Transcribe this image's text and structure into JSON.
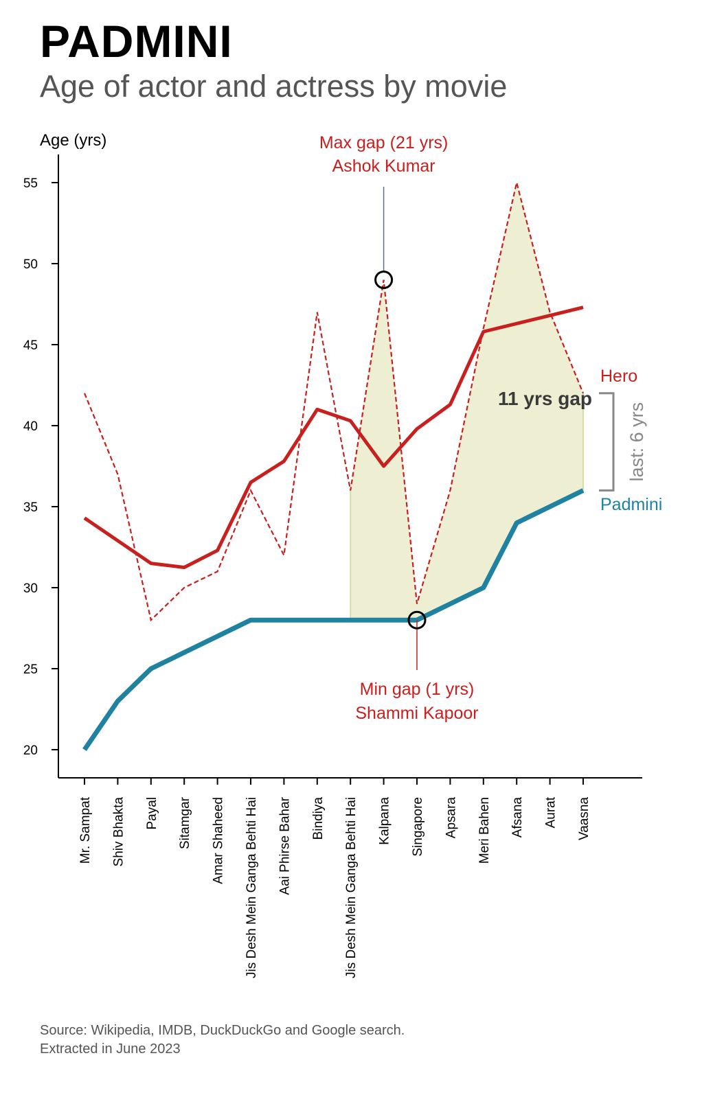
{
  "title": "PADMINI",
  "subtitle": "Age of actor and actress by movie",
  "source": {
    "line1": "Source: Wikipedia, IMDB, DuckDuckGo and Google search.",
    "line2": "Extracted in June 2023"
  },
  "chart_data": {
    "type": "line",
    "ylabel": "Age (yrs)",
    "ylim": [
      18.3,
      56.8
    ],
    "yticks": [
      20,
      25,
      30,
      35,
      40,
      45,
      50,
      55
    ],
    "categories": [
      "Mr. Sampat",
      "Shiv Bhakta",
      "Payal",
      "Sitamgar",
      "Amar Shaheed",
      "Jis Desh Mein Ganga Behti Hai",
      "Aai Phirse Bahar",
      "Bindiya",
      "Jis Desh Mein Ganga Behti Hai",
      "Kalpana",
      "Singapore",
      "Apsara",
      "Meri Bahen",
      "Afsana",
      "Aurat",
      "Vaasna"
    ],
    "series": [
      {
        "name": "Hero",
        "role": "hero-age",
        "color": "#c8201e",
        "values": [
          42,
          37,
          28,
          30,
          31,
          36,
          32,
          47,
          36,
          49,
          29,
          36,
          46,
          55,
          47,
          42
        ]
      },
      {
        "name": "Hero",
        "role": "hero-trend",
        "color": "#c8201e",
        "values": [
          34.3,
          32.9,
          31.5,
          31.25,
          32.3,
          36.5,
          37.8,
          41.0,
          40.3,
          37.5,
          39.8,
          41.3,
          45.8,
          46.3,
          46.8,
          47.3
        ]
      },
      {
        "name": "Padmini",
        "role": "actress-age",
        "color": "#1f82a0",
        "values": [
          20,
          23,
          25,
          26,
          27,
          28,
          28,
          28,
          28,
          28,
          28,
          29,
          30,
          34,
          35,
          36
        ]
      }
    ],
    "annotations": {
      "max_gap": {
        "line1": "Max gap (21 yrs)",
        "line2": "Ashok Kumar",
        "index": 9,
        "value": 49
      },
      "min_gap": {
        "line1": "Min gap (1 yrs)",
        "line2": "Shammi Kapoor",
        "index": 10,
        "value": 28
      },
      "avg_gap": "11 yrs gap",
      "last_gap": "last: 6 yrs",
      "hero_label": "Hero",
      "actress_label": "Padmini"
    },
    "shade_from_index": 8,
    "colors": {
      "hero": "#c8201e",
      "actress": "#1f82a0",
      "shade": "#eeeed3",
      "shade_edge": "#d4dfa6",
      "gap_bracket": "#888888"
    }
  }
}
